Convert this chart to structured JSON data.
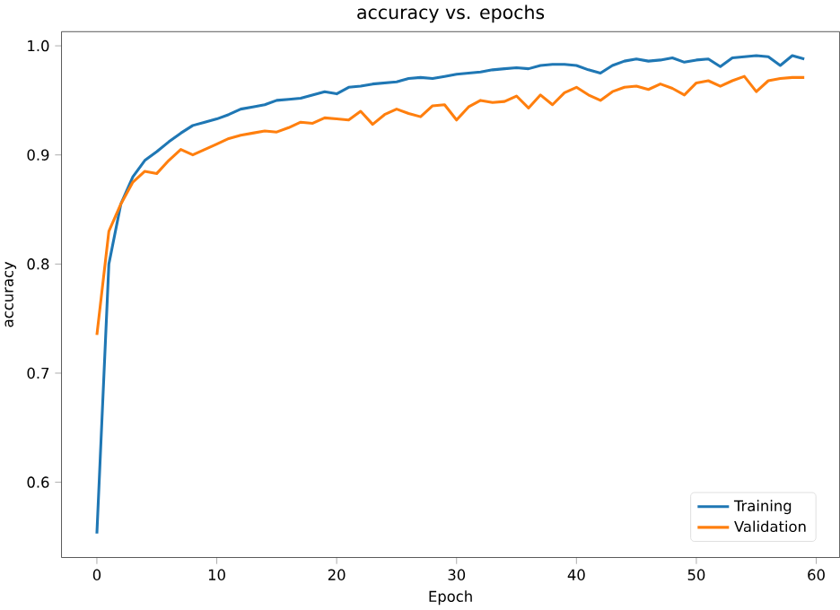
{
  "chart_data": {
    "type": "line",
    "title": "accuracy vs. epochs",
    "xlabel": "Epoch",
    "ylabel": "accuracy",
    "x": [
      0,
      1,
      2,
      3,
      4,
      5,
      6,
      7,
      8,
      9,
      10,
      11,
      12,
      13,
      14,
      15,
      16,
      17,
      18,
      19,
      20,
      21,
      22,
      23,
      24,
      25,
      26,
      27,
      28,
      29,
      30,
      31,
      32,
      33,
      34,
      35,
      36,
      37,
      38,
      39,
      40,
      41,
      42,
      43,
      44,
      45,
      46,
      47,
      48,
      49,
      50,
      51,
      52,
      53,
      54,
      55,
      56,
      57,
      58,
      59
    ],
    "series": [
      {
        "name": "Training",
        "color": "#1f77b4",
        "values": [
          0.553,
          0.8,
          0.855,
          0.88,
          0.895,
          0.903,
          0.912,
          0.92,
          0.927,
          0.93,
          0.933,
          0.937,
          0.942,
          0.944,
          0.946,
          0.95,
          0.951,
          0.952,
          0.955,
          0.958,
          0.956,
          0.962,
          0.963,
          0.965,
          0.966,
          0.967,
          0.97,
          0.971,
          0.97,
          0.972,
          0.974,
          0.975,
          0.976,
          0.978,
          0.979,
          0.98,
          0.979,
          0.982,
          0.983,
          0.983,
          0.982,
          0.978,
          0.975,
          0.982,
          0.986,
          0.988,
          0.986,
          0.987,
          0.989,
          0.985,
          0.987,
          0.988,
          0.981,
          0.989,
          0.99,
          0.991,
          0.99,
          0.982,
          0.991,
          0.988
        ]
      },
      {
        "name": "Validation",
        "color": "#ff7f0e",
        "values": [
          0.735,
          0.83,
          0.855,
          0.875,
          0.885,
          0.883,
          0.895,
          0.905,
          0.9,
          0.905,
          0.91,
          0.915,
          0.918,
          0.92,
          0.922,
          0.921,
          0.925,
          0.93,
          0.929,
          0.934,
          0.933,
          0.932,
          0.94,
          0.928,
          0.937,
          0.942,
          0.938,
          0.935,
          0.945,
          0.946,
          0.932,
          0.944,
          0.95,
          0.948,
          0.949,
          0.954,
          0.943,
          0.955,
          0.946,
          0.957,
          0.962,
          0.955,
          0.95,
          0.958,
          0.962,
          0.963,
          0.96,
          0.965,
          0.961,
          0.955,
          0.966,
          0.968,
          0.963,
          0.968,
          0.972,
          0.958,
          0.968,
          0.97,
          0.971,
          0.971
        ]
      }
    ],
    "xlim": [
      -2.95,
      61.95
    ],
    "ylim": [
      0.531,
      1.013
    ],
    "xticks": [
      0,
      10,
      20,
      30,
      40,
      50,
      60
    ],
    "yticks": [
      {
        "value": 0.6,
        "label": "0.6"
      },
      {
        "value": 0.7,
        "label": "0.7"
      },
      {
        "value": 0.8,
        "label": "0.8"
      },
      {
        "value": 0.9,
        "label": "0.9"
      },
      {
        "value": 1.0,
        "label": "1.0"
      }
    ],
    "legend": "bottom right",
    "grid": false,
    "marker": "none",
    "line_style": "solid"
  }
}
